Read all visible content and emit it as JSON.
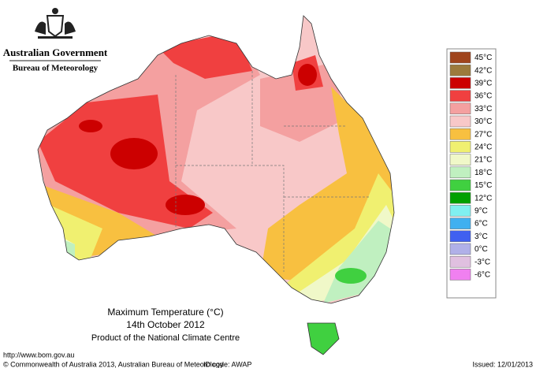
{
  "header": {
    "government": "Australian Government",
    "agency": "Bureau of Meteorology"
  },
  "legend": [
    {
      "label": "45°C",
      "color": "#a0441c"
    },
    {
      "label": "42°C",
      "color": "#9c7a3c"
    },
    {
      "label": "39°C",
      "color": "#cc0000"
    },
    {
      "label": "36°C",
      "color": "#f04040"
    },
    {
      "label": "33°C",
      "color": "#f4a0a0"
    },
    {
      "label": "30°C",
      "color": "#f8c8c8"
    },
    {
      "label": "27°C",
      "color": "#f8c040"
    },
    {
      "label": "24°C",
      "color": "#f0f070"
    },
    {
      "label": "21°C",
      "color": "#f0f8c8"
    },
    {
      "label": "18°C",
      "color": "#c0f0c0"
    },
    {
      "label": "15°C",
      "color": "#40d040"
    },
    {
      "label": "12°C",
      "color": "#00a000"
    },
    {
      "label": "9°C",
      "color": "#80f0f0"
    },
    {
      "label": "6°C",
      "color": "#40b0f0"
    },
    {
      "label": "3°C",
      "color": "#4060f0"
    },
    {
      "label": "0°C",
      "color": "#b0b0e8"
    },
    {
      "label": "-3°C",
      "color": "#e0c0e0"
    },
    {
      "label": "-6°C",
      "color": "#f080f0"
    }
  ],
  "caption": {
    "title": "Maximum Temperature (°C)",
    "date": "14th October 2012",
    "product": "Product of the National Climate Centre"
  },
  "footer": {
    "url": "http://www.bom.gov.au",
    "copyright": "© Commonwealth of Australia 2013, Australian Bureau of Meteorology",
    "id_code": "ID code: AWAP",
    "issued": "Issued: 12/01/2013"
  }
}
